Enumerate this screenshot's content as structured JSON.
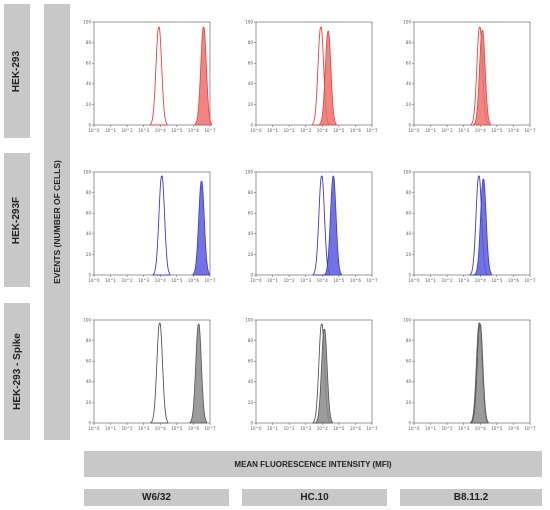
{
  "figure": {
    "rows": [
      "HEK-293",
      "HEK-293F",
      "HEK-293 - Spike"
    ],
    "y_axis_label": "EVENTS (NUMBER OF CELLS)",
    "x_axis_label": "MEAN FLUORESCENCE INTENSITY (MFI)",
    "columns": [
      "W6/32",
      "HC.10",
      "B8.11.2"
    ],
    "row_colors": [
      "#e8413e",
      "#3a39d4",
      "#555555"
    ],
    "row_fill_colors": [
      "#ee6e6b",
      "#5a59e0",
      "#8a8a8a"
    ]
  },
  "chart_data": {
    "type": "area",
    "x_scale": "log",
    "xlim": [
      1,
      10000000
    ],
    "ylim": [
      0,
      100
    ],
    "x_ticks": [
      "10^0",
      "10^1",
      "10^2",
      "10^3",
      "10^4",
      "10^5",
      "10^6",
      "10^7"
    ],
    "y_ticks": [
      0,
      20,
      40,
      60,
      80,
      100
    ],
    "panels": [
      {
        "row": "HEK-293",
        "column": "W6/32",
        "series": [
          {
            "kind": "control",
            "peak_x": 8000,
            "peak_y": 95
          },
          {
            "kind": "stained",
            "peak_x": 4000000,
            "peak_y": 95
          }
        ]
      },
      {
        "row": "HEK-293",
        "column": "HC.10",
        "series": [
          {
            "kind": "control",
            "peak_x": 8000,
            "peak_y": 95
          },
          {
            "kind": "stained",
            "peak_x": 22000,
            "peak_y": 91
          }
        ]
      },
      {
        "row": "HEK-293",
        "column": "B8.11.2",
        "series": [
          {
            "kind": "control",
            "peak_x": 9000,
            "peak_y": 95
          },
          {
            "kind": "stained",
            "peak_x": 13000,
            "peak_y": 92
          }
        ]
      },
      {
        "row": "HEK-293F",
        "column": "W6/32",
        "series": [
          {
            "kind": "control",
            "peak_x": 12000,
            "peak_y": 96
          },
          {
            "kind": "stained",
            "peak_x": 3000000,
            "peak_y": 91
          }
        ]
      },
      {
        "row": "HEK-293F",
        "column": "HC.10",
        "series": [
          {
            "kind": "control",
            "peak_x": 9000,
            "peak_y": 96
          },
          {
            "kind": "stained",
            "peak_x": 45000,
            "peak_y": 96
          }
        ]
      },
      {
        "row": "HEK-293F",
        "column": "B8.11.2",
        "series": [
          {
            "kind": "control",
            "peak_x": 8000,
            "peak_y": 96
          },
          {
            "kind": "stained",
            "peak_x": 15000,
            "peak_y": 93
          }
        ]
      },
      {
        "row": "HEK-293 - Spike",
        "column": "W6/32",
        "series": [
          {
            "kind": "control",
            "peak_x": 9000,
            "peak_y": 97
          },
          {
            "kind": "stained",
            "peak_x": 2000000,
            "peak_y": 96
          }
        ]
      },
      {
        "row": "HEK-293 - Spike",
        "column": "HC.10",
        "series": [
          {
            "kind": "control",
            "peak_x": 9000,
            "peak_y": 96
          },
          {
            "kind": "stained",
            "peak_x": 13000,
            "peak_y": 91
          }
        ]
      },
      {
        "row": "HEK-293 - Spike",
        "column": "B8.11.2",
        "series": [
          {
            "kind": "control",
            "peak_x": 8500,
            "peak_y": 97
          },
          {
            "kind": "stained",
            "peak_x": 9500,
            "peak_y": 96
          }
        ]
      }
    ]
  }
}
